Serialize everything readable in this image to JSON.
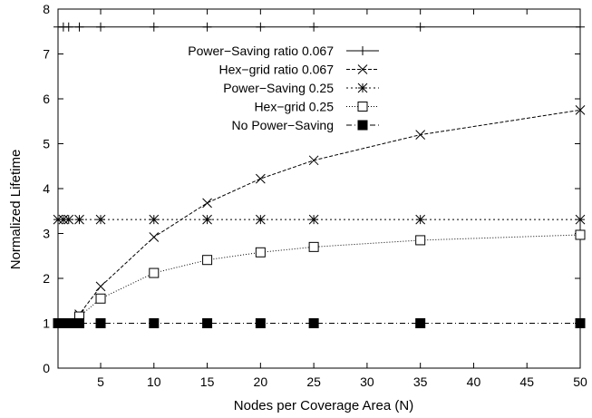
{
  "chart_data": {
    "type": "line",
    "xlabel": "Nodes per Coverage Area (N)",
    "ylabel": "Normalized Lifetime",
    "xlim": [
      1,
      50
    ],
    "ylim": [
      0,
      8
    ],
    "xticks": [
      5,
      10,
      15,
      20,
      25,
      30,
      35,
      40,
      45,
      50
    ],
    "yticks": [
      0,
      1,
      2,
      3,
      4,
      5,
      6,
      7,
      8
    ],
    "grid": false,
    "legend_position": "top-right",
    "series": [
      {
        "name": "Power−Saving ratio 0.067",
        "marker": "plus",
        "dash": "solid",
        "x": [
          1,
          1.5,
          2,
          3,
          5,
          10,
          15,
          20,
          25,
          35,
          50
        ],
        "y": [
          7.6,
          7.6,
          7.6,
          7.6,
          7.6,
          7.6,
          7.6,
          7.6,
          7.6,
          7.6,
          7.6
        ]
      },
      {
        "name": "Hex−grid ratio 0.067",
        "marker": "cross",
        "dash": "dashed",
        "x": [
          1,
          2,
          3,
          5,
          10,
          15,
          20,
          25,
          35,
          50
        ],
        "y": [
          1.0,
          1.0,
          1.2,
          1.82,
          2.92,
          3.68,
          4.22,
          4.63,
          5.2,
          5.75
        ]
      },
      {
        "name": "Power−Saving 0.25",
        "marker": "star",
        "dash": "dotted",
        "x": [
          1,
          1.5,
          2,
          3,
          5,
          10,
          15,
          20,
          25,
          35,
          50
        ],
        "y": [
          3.31,
          3.31,
          3.31,
          3.31,
          3.31,
          3.31,
          3.31,
          3.31,
          3.31,
          3.31,
          3.31
        ]
      },
      {
        "name": "Hex−grid 0.25",
        "marker": "open-square",
        "dash": "fine-dotted",
        "x": [
          1,
          2,
          3,
          5,
          10,
          15,
          20,
          25,
          35,
          50
        ],
        "y": [
          1.0,
          1.0,
          1.15,
          1.55,
          2.12,
          2.41,
          2.58,
          2.7,
          2.85,
          2.97
        ]
      },
      {
        "name": "No Power−Saving",
        "marker": "filled-square",
        "dash": "dash-dot",
        "x": [
          1,
          1.25,
          1.5,
          1.75,
          2,
          2.25,
          2.5,
          3,
          5,
          10,
          15,
          20,
          25,
          35,
          50
        ],
        "y": [
          1,
          1,
          1,
          1,
          1,
          1,
          1,
          1,
          1,
          1,
          1,
          1,
          1,
          1,
          1
        ]
      }
    ]
  }
}
